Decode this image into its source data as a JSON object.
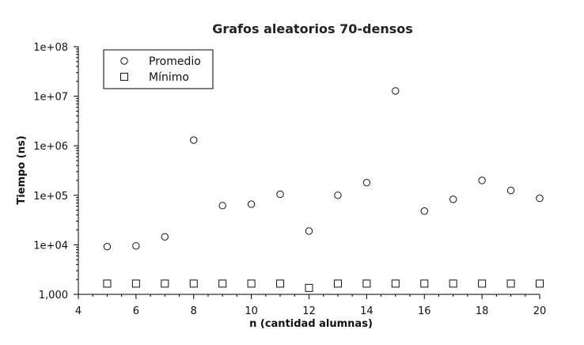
{
  "chart_data": {
    "type": "scatter",
    "title": "Grafos aleatorios 70-densos",
    "xlabel": "n (cantidad alumnas)",
    "ylabel": "Tiempo (ns)",
    "xlim": [
      4,
      20
    ],
    "ylim": [
      1000,
      100000000
    ],
    "yscale": "log",
    "x_ticks": [
      "4",
      "6",
      "8",
      "10",
      "12",
      "14",
      "16",
      "18",
      "20"
    ],
    "y_ticks": [
      "1,000",
      "1e+04",
      "1e+05",
      "1e+06",
      "1e+07",
      "1e+08"
    ],
    "legend_position": "top-left",
    "grid": false,
    "series": [
      {
        "name": "Promedio",
        "marker": "circle",
        "x": [
          5,
          6,
          7,
          8,
          9,
          10,
          11,
          12,
          13,
          14,
          15,
          16,
          17,
          18,
          19,
          20
        ],
        "y": [
          9200,
          9500,
          14500,
          1300000,
          62000,
          66000,
          105000,
          19000,
          100000,
          180000,
          12800000,
          48000,
          83000,
          200000,
          125000,
          87000
        ]
      },
      {
        "name": "Mínimo",
        "marker": "square",
        "x": [
          5,
          6,
          7,
          8,
          9,
          10,
          11,
          12,
          13,
          14,
          15,
          16,
          17,
          18,
          19,
          20
        ],
        "y": [
          1650,
          1650,
          1650,
          1650,
          1650,
          1650,
          1650,
          1350,
          1650,
          1650,
          1650,
          1650,
          1650,
          1650,
          1650,
          1650
        ]
      }
    ]
  }
}
